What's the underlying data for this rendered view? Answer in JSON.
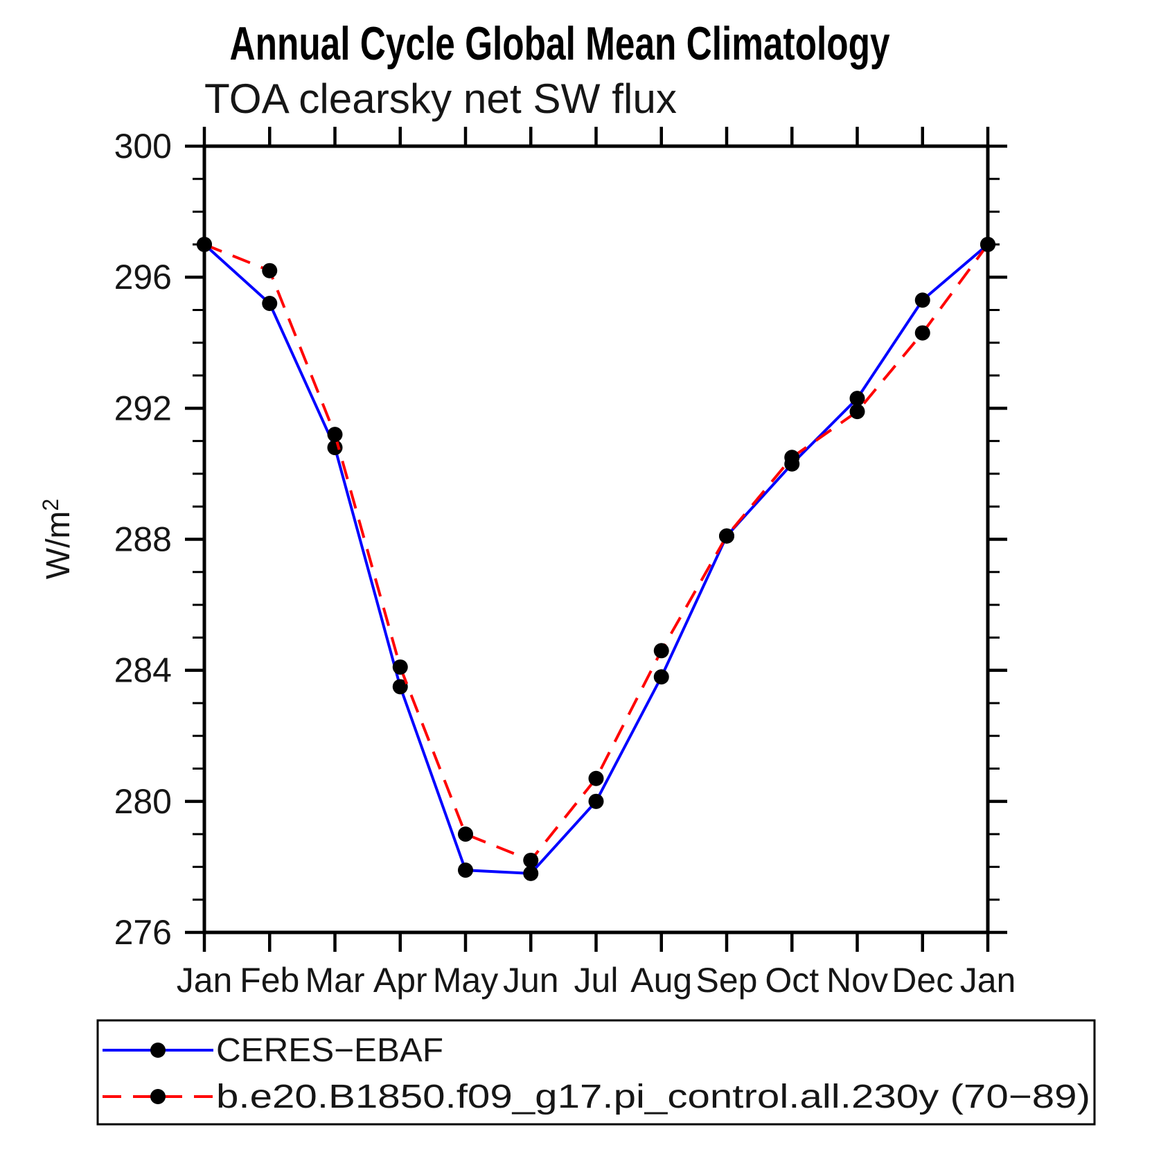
{
  "chart_data": {
    "type": "line",
    "title": "Annual Cycle Global Mean Climatology",
    "subtitle": "TOA clearsky net SW flux",
    "ylabel_base": "W/m",
    "ylabel_sup": "2",
    "x_categories": [
      "Jan",
      "Feb",
      "Mar",
      "Apr",
      "May",
      "Jun",
      "Jul",
      "Aug",
      "Sep",
      "Oct",
      "Nov",
      "Dec",
      "Jan"
    ],
    "ylim": [
      276,
      300
    ],
    "ytick_major_step": 4,
    "ytick_minor_step": 1,
    "ytick_major_labels": [
      "276",
      "280",
      "284",
      "288",
      "292",
      "296",
      "300"
    ],
    "grid": false,
    "legend_position": "bottom-left-box",
    "marker": "filled-circle",
    "marker_color": "#000000",
    "series": [
      {
        "id": "ceres-ebaf",
        "name": "CERES−EBAF",
        "color": "#0000ff",
        "line_style": "solid",
        "values": [
          297.0,
          295.2,
          290.8,
          283.5,
          277.9,
          277.8,
          280.0,
          283.8,
          288.1,
          290.3,
          292.3,
          295.3,
          297.0
        ]
      },
      {
        "id": "model-pi-control",
        "name": "b.e20.B1850.f09_g17.pi_control.all.230y (70−89)",
        "color": "#ff0000",
        "line_style": "dashed",
        "values": [
          297.0,
          296.2,
          291.2,
          284.1,
          279.0,
          278.2,
          280.7,
          284.6,
          288.1,
          290.5,
          291.9,
          294.3,
          297.0
        ]
      }
    ]
  }
}
